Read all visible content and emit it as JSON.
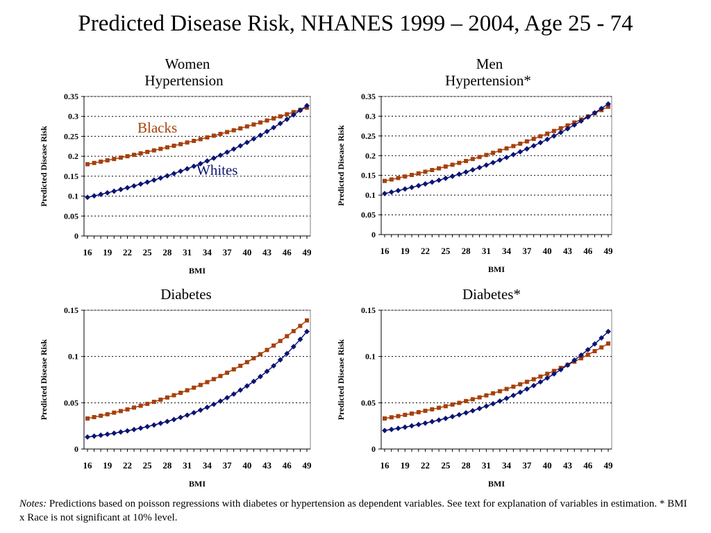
{
  "title": "Predicted Disease Risk, NHANES 1999 – 2004, Age 25 - 74",
  "headings": {
    "women": "Women",
    "men": "Men",
    "women_top": "Hypertension",
    "men_top": "Hypertension*",
    "women_bottom": "Diabetes",
    "men_bottom": "Diabetes*"
  },
  "series_colors": {
    "Blacks": "#A6400B",
    "Whites": "#0B1473"
  },
  "annotations": {
    "blacks": "Blacks",
    "whites": "Whites"
  },
  "notes": {
    "label": "Notes:",
    "text": " Predictions based on poisson regressions with diabetes or hypertension as dependent variables. See text for explanation of variables in estimation. * BMI x Race is not significant at 10% level."
  },
  "chart_data": [
    {
      "type": "line",
      "panel": "women-hypertension",
      "x_ticks": [
        16,
        19,
        22,
        25,
        28,
        31,
        34,
        37,
        40,
        43,
        46,
        49
      ],
      "y_ticks": [
        "0",
        "0.05",
        "0.1",
        "0.15",
        "0.2",
        "0.25",
        "0.3",
        "0.35"
      ],
      "ylim": [
        0,
        0.35
      ],
      "xlim": [
        16,
        49
      ],
      "xlabel": "BMI",
      "ylabel": "Predicted Disease Risk",
      "grid": "horizontal dotted",
      "series": [
        {
          "name": "Blacks",
          "start": 0.18,
          "end": 0.322
        },
        {
          "name": "Whites",
          "start": 0.097,
          "end": 0.327
        }
      ]
    },
    {
      "type": "line",
      "panel": "men-hypertension",
      "x_ticks": [
        16,
        19,
        22,
        25,
        28,
        31,
        34,
        37,
        40,
        43,
        46,
        49
      ],
      "y_ticks": [
        "0",
        "0.05",
        "0.1",
        "0.15",
        "0.2",
        "0.25",
        "0.3",
        "0.35"
      ],
      "ylim": [
        0,
        0.35
      ],
      "xlim": [
        16,
        49
      ],
      "xlabel": "BMI",
      "ylabel": "Predicted Disease Risk",
      "grid": "horizontal dotted",
      "series": [
        {
          "name": "Blacks",
          "start": 0.136,
          "end": 0.324
        },
        {
          "name": "Whites",
          "start": 0.104,
          "end": 0.331
        }
      ]
    },
    {
      "type": "line",
      "panel": "women-diabetes",
      "x_ticks": [
        16,
        19,
        22,
        25,
        28,
        31,
        34,
        37,
        40,
        43,
        46,
        49
      ],
      "y_ticks": [
        "0",
        "0.05",
        "0.1",
        "0.15"
      ],
      "ylim": [
        0,
        0.15
      ],
      "xlim": [
        16,
        49
      ],
      "xlabel": "BMI",
      "ylabel": "Predicted Disease Risk",
      "grid": "horizontal dotted",
      "series": [
        {
          "name": "Blacks",
          "start": 0.033,
          "end": 0.139
        },
        {
          "name": "Whites",
          "start": 0.013,
          "end": 0.127
        }
      ]
    },
    {
      "type": "line",
      "panel": "men-diabetes",
      "x_ticks": [
        16,
        19,
        22,
        25,
        28,
        31,
        34,
        37,
        40,
        43,
        46,
        49
      ],
      "y_ticks": [
        "0",
        "0.05",
        "0.1",
        "0.15"
      ],
      "ylim": [
        0,
        0.15
      ],
      "xlim": [
        16,
        49
      ],
      "xlabel": "BMI",
      "ylabel": "Predicted Disease Risk",
      "grid": "horizontal dotted",
      "series": [
        {
          "name": "Blacks",
          "start": 0.033,
          "end": 0.114
        },
        {
          "name": "Whites",
          "start": 0.02,
          "end": 0.127
        }
      ]
    }
  ]
}
